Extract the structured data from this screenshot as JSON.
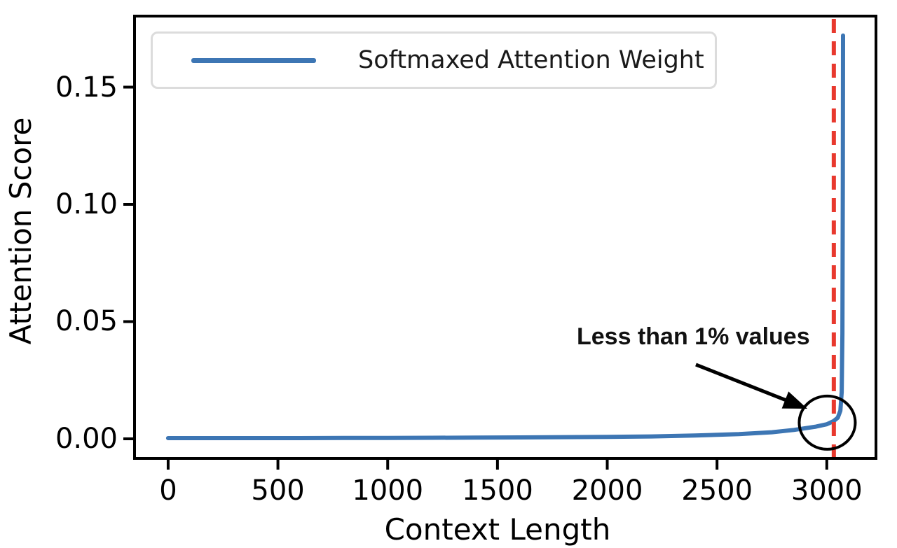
{
  "chart_data": {
    "type": "line",
    "title": "",
    "xlabel": "Context Length",
    "ylabel": "Attention Score",
    "x_tick_values": [
      0,
      500,
      1000,
      1500,
      2000,
      2500,
      3000
    ],
    "x_tick_labels": [
      "0",
      "500",
      "1000",
      "1500",
      "2000",
      "2500",
      "3000"
    ],
    "y_tick_values": [
      0,
      0.05,
      0.1,
      0.15
    ],
    "y_tick_labels": [
      "0.00",
      "0.05",
      "0.10",
      "0.15"
    ],
    "xlim": [
      -153,
      3224
    ],
    "ylim": [
      -0.00836,
      0.1803
    ],
    "grid": false,
    "legend": {
      "position": "upper left",
      "entries": [
        {
          "label": "Softmaxed Attention Weight",
          "color": "#3d76b4"
        }
      ]
    },
    "series": [
      {
        "name": "Softmaxed Attention Weight",
        "color": "#3d76b4",
        "points": [
          [
            0,
            0.0003
          ],
          [
            200,
            0.0003
          ],
          [
            400,
            0.0003
          ],
          [
            600,
            0.0003
          ],
          [
            800,
            0.00035
          ],
          [
            1000,
            0.0004
          ],
          [
            1200,
            0.00045
          ],
          [
            1400,
            0.0005
          ],
          [
            1600,
            0.0006
          ],
          [
            1800,
            0.0007
          ],
          [
            2000,
            0.0008
          ],
          [
            2200,
            0.001
          ],
          [
            2400,
            0.0014
          ],
          [
            2600,
            0.002
          ],
          [
            2750,
            0.0028
          ],
          [
            2850,
            0.0038
          ],
          [
            2950,
            0.0052
          ],
          [
            3000,
            0.0062
          ],
          [
            3030,
            0.0075
          ],
          [
            3050,
            0.009
          ],
          [
            3062,
            0.012
          ],
          [
            3068,
            0.02
          ],
          [
            3071,
            0.045
          ],
          [
            3073,
            0.11
          ],
          [
            3074,
            0.172
          ]
        ]
      }
    ],
    "vline": {
      "x": 3032,
      "color": "#e8392e",
      "style": "dashed"
    },
    "annotation": {
      "text_prefix": "Less than ",
      "text_bold": "1%",
      "text_suffix": " values",
      "circle_center": [
        3002,
        0.0069
      ],
      "arrow": true
    }
  }
}
